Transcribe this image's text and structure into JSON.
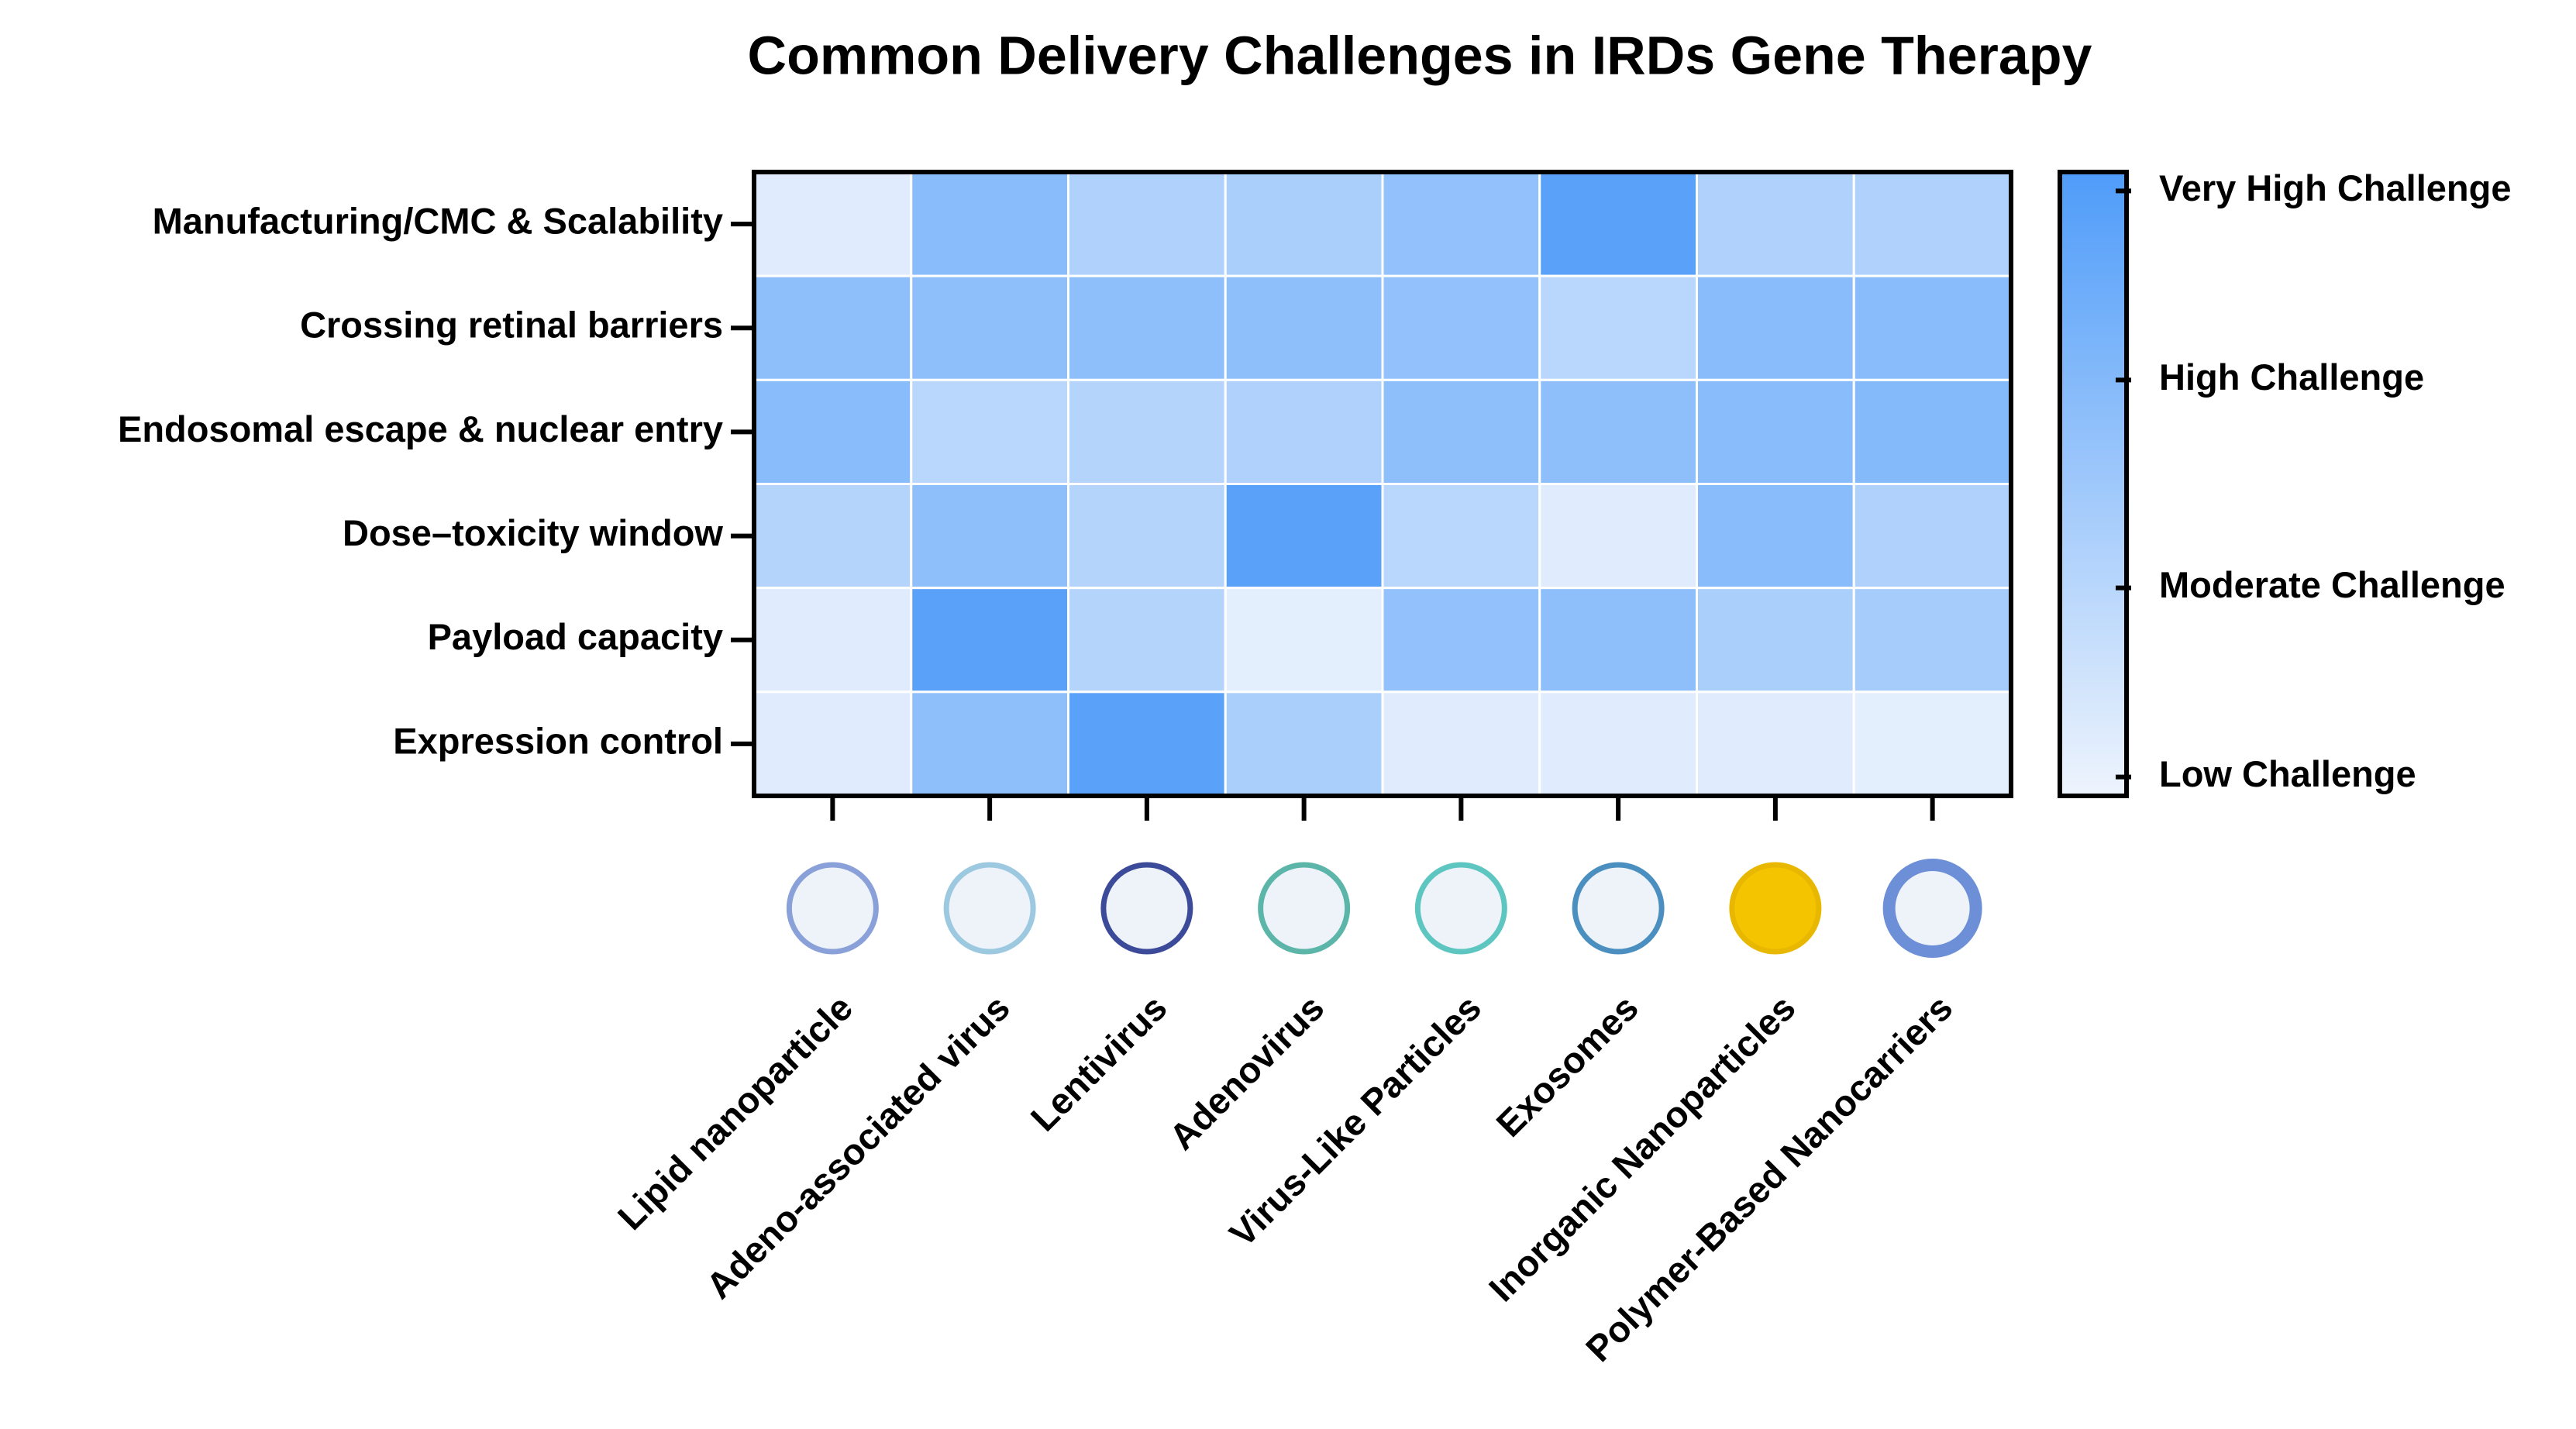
{
  "chart_data": {
    "type": "heatmap",
    "title": "Common Delivery Challenges in IRDs Gene Therapy",
    "x": [
      "Lipid nanoparticle",
      "Adeno-associated virus",
      "Lentivirus",
      "Adenovirus",
      "Virus-Like Particles",
      "Exosomes",
      "Inorganic Nanoparticles",
      "Polymer-Based Nanocarriers"
    ],
    "y": [
      "Manufacturing/CMC & Scalability",
      "Crossing retinal barriers",
      "Endosomal escape & nuclear entry",
      "Dose–toxicity window",
      "Payload capacity",
      "Expression control"
    ],
    "values": [
      [
        1.2,
        3.0,
        2.2,
        2.3,
        2.8,
        4.0,
        2.2,
        2.2
      ],
      [
        2.9,
        2.9,
        2.9,
        2.9,
        2.8,
        2.0,
        3.0,
        3.0
      ],
      [
        3.0,
        2.0,
        2.1,
        2.2,
        2.9,
        2.9,
        3.0,
        3.1
      ],
      [
        2.1,
        2.9,
        2.1,
        4.0,
        2.0,
        1.2,
        3.0,
        2.2
      ],
      [
        1.2,
        4.0,
        2.1,
        1.1,
        2.8,
        2.9,
        2.3,
        2.4
      ],
      [
        1.2,
        2.9,
        4.0,
        2.3,
        1.2,
        1.2,
        1.2,
        1.1
      ]
    ],
    "zlim": [
      0.9,
      4.2
    ],
    "colorscale": [
      "#eef4fd",
      "#4f9cf9"
    ],
    "colorbar_ticks": [
      {
        "value": 1,
        "label": "Low Challenge"
      },
      {
        "value": 2,
        "label": "Moderate Challenge"
      },
      {
        "value": 3.1,
        "label": "High Challenge"
      },
      {
        "value": 4.1,
        "label": "Very High Challenge"
      }
    ]
  }
}
